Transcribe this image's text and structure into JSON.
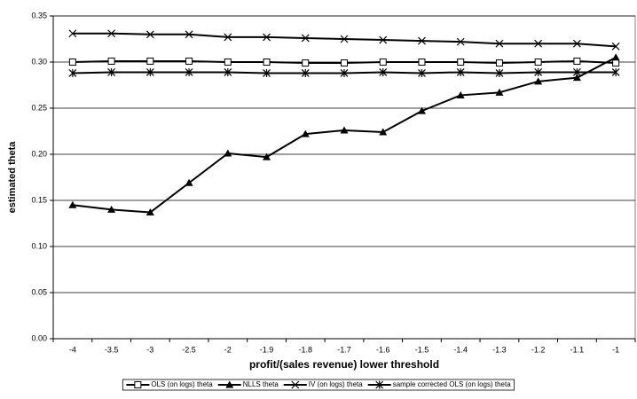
{
  "chart_data": {
    "type": "line",
    "x_label": "profit/(sales revenue) lower threshold",
    "y_label": "estimated theta",
    "categories": [
      "-4",
      "-3.5",
      "-3",
      "-2.5",
      "-2",
      "-1.9",
      "-1.8",
      "-1.7",
      "-1.6",
      "-1.5",
      "-1.4",
      "-1.3",
      "-1.2",
      "-1.1",
      "-1"
    ],
    "ylim": [
      0,
      0.35
    ],
    "yticks": [
      {
        "value": 0,
        "label": "0.00"
      },
      0.05,
      {
        "value": 0.1,
        "label": "0.10"
      },
      0.15,
      {
        "value": 0.2,
        "label": "0.20"
      },
      0.25,
      {
        "value": 0.3,
        "label": "0.30"
      },
      0.35
    ],
    "grid": true,
    "legend": "bottom",
    "series": [
      {
        "name": "OLS (on logs) theta",
        "color": "#000000",
        "marker": "square",
        "values": [
          0.3,
          0.301,
          0.301,
          0.301,
          0.3,
          0.3,
          0.299,
          0.299,
          0.3,
          0.3,
          0.3,
          0.299,
          0.3,
          0.301,
          0.299
        ]
      },
      {
        "name": "NLLS theta",
        "color": "#000000",
        "marker": "triangle",
        "values": [
          0.145,
          0.14,
          0.137,
          0.169,
          0.201,
          0.197,
          0.222,
          0.226,
          0.224,
          0.247,
          0.264,
          0.267,
          0.279,
          0.283,
          0.305
        ]
      },
      {
        "name": "IV (on logs) theta",
        "color": "#000000",
        "marker": "x",
        "values": [
          0.331,
          0.331,
          0.33,
          0.33,
          0.327,
          0.327,
          0.326,
          0.325,
          0.324,
          0.323,
          0.322,
          0.32,
          0.32,
          0.32,
          0.317
        ]
      },
      {
        "name": "sample corrected OLS (on logs) theta",
        "color": "#000000",
        "marker": "asterisk",
        "values": [
          0.288,
          0.289,
          0.289,
          0.289,
          0.289,
          0.288,
          0.288,
          0.288,
          0.289,
          0.288,
          0.289,
          0.288,
          0.289,
          0.289,
          0.289
        ]
      }
    ]
  }
}
